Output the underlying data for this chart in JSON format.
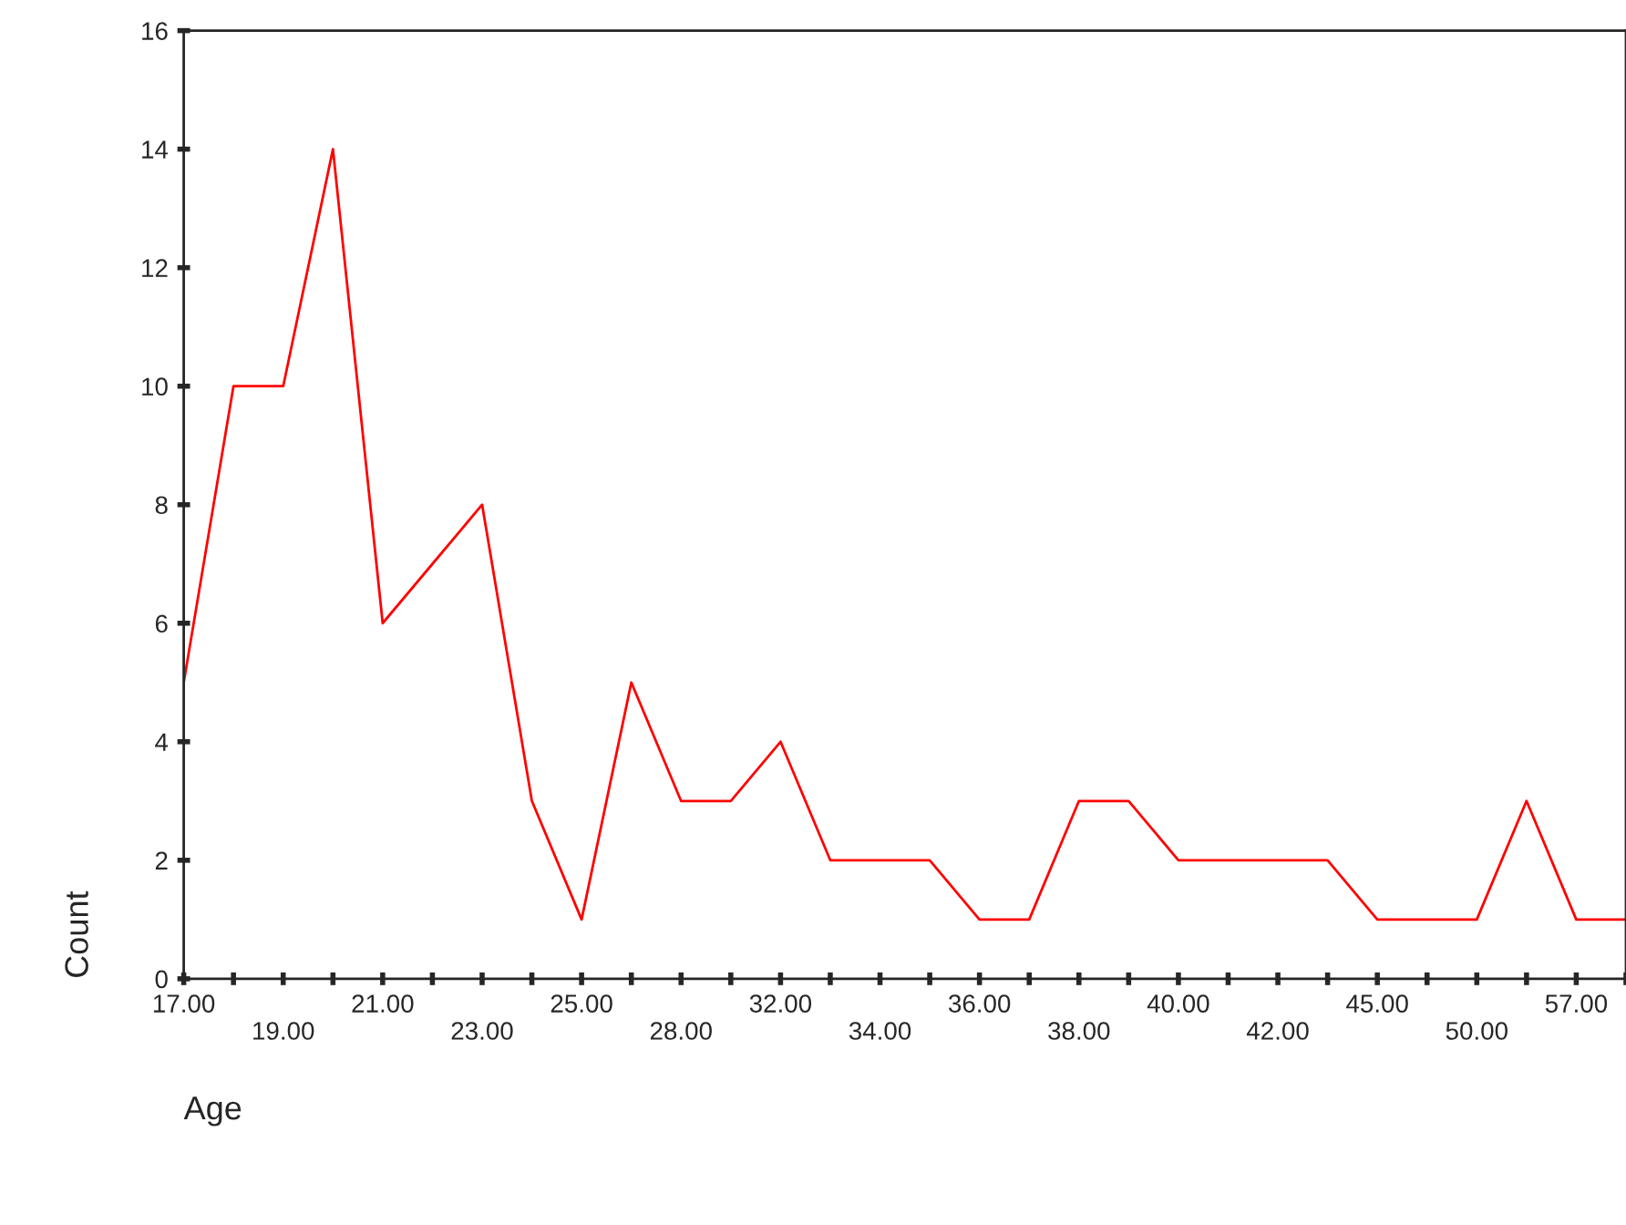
{
  "chart_data": {
    "type": "line",
    "xlabel": "Age",
    "ylabel": "Count",
    "categories": [
      "17.00",
      null,
      "19.00",
      null,
      "21.00",
      null,
      "23.00",
      null,
      "25.00",
      null,
      "28.00",
      null,
      "32.00",
      null,
      "34.00",
      null,
      "36.00",
      null,
      "38.00",
      null,
      "40.00",
      null,
      "42.00",
      null,
      "45.00",
      null,
      "50.00",
      null,
      "57.00",
      null
    ],
    "series": [
      {
        "color": "#ff0000",
        "values": [
          5,
          10,
          10,
          14,
          6,
          7,
          8,
          3,
          1,
          5,
          3,
          3,
          4,
          2,
          2,
          2,
          1,
          1,
          3,
          3,
          2,
          2,
          2,
          2,
          1,
          1,
          1,
          3,
          1,
          1
        ]
      }
    ],
    "ylim": [
      0,
      16
    ],
    "yticks": [
      0,
      2,
      4,
      6,
      8,
      10,
      12,
      14,
      16
    ],
    "grid": false,
    "legend": false,
    "marker": "none",
    "line_style": "solid"
  }
}
